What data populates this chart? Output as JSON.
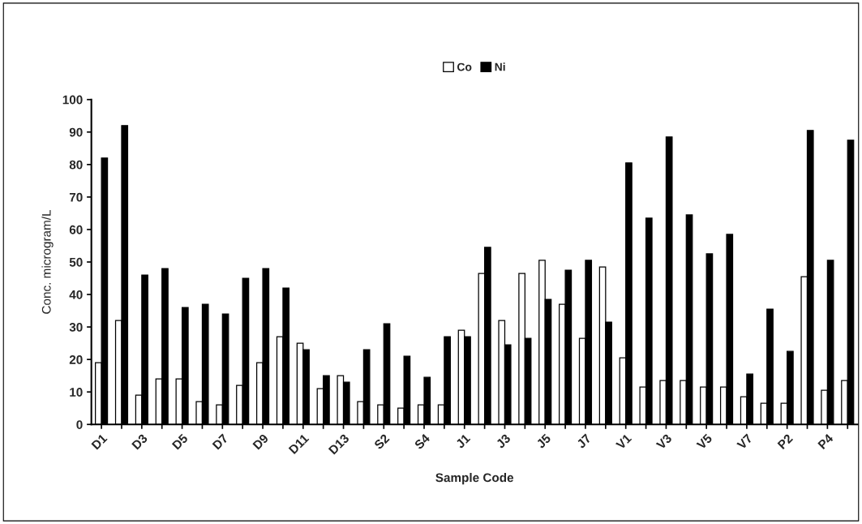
{
  "chart_data": {
    "type": "bar",
    "xlabel": "Sample Code",
    "ylabel": "Conc. microgram/L",
    "categories": [
      "D1",
      null,
      "D3",
      null,
      "D5",
      null,
      "D7",
      null,
      "D9",
      null,
      "D11",
      null,
      "D13",
      null,
      "S2",
      null,
      "S4",
      null,
      "J1",
      null,
      "J3",
      null,
      "J5",
      null,
      "J7",
      null,
      "V1",
      null,
      "V3",
      null,
      "V5",
      null,
      "V7",
      null,
      "P2",
      null,
      "P4",
      null
    ],
    "series": [
      {
        "name": "Co",
        "color": "#ffffff",
        "values": [
          19,
          32,
          9,
          14,
          14,
          7,
          6,
          12,
          19,
          27,
          25,
          11,
          15,
          7,
          6,
          5,
          6,
          6,
          29,
          46.5,
          32,
          46.5,
          50.5,
          37,
          26.5,
          48.5,
          20.5,
          11.5,
          13.5,
          13.5,
          11.5,
          11.5,
          8.5,
          6.5,
          6.5,
          45.5,
          10.5,
          13.5
        ]
      },
      {
        "name": "Ni",
        "color": "#000000",
        "values": [
          82,
          92,
          46,
          48,
          36,
          37,
          34,
          45,
          48,
          42,
          23,
          15,
          13,
          23,
          31,
          21,
          14.5,
          27,
          27,
          54.5,
          24.5,
          26.5,
          38.5,
          47.5,
          50.5,
          31.5,
          80.5,
          63.5,
          88.5,
          64.5,
          52.5,
          58.5,
          15.5,
          35.5,
          22.5,
          90.5,
          50.5,
          87.5
        ]
      }
    ],
    "ylim": [
      0,
      100
    ],
    "yticks": [
      0,
      10,
      20,
      30,
      40,
      50,
      60,
      70,
      80,
      90,
      100
    ],
    "grid": false,
    "legend": "top"
  }
}
